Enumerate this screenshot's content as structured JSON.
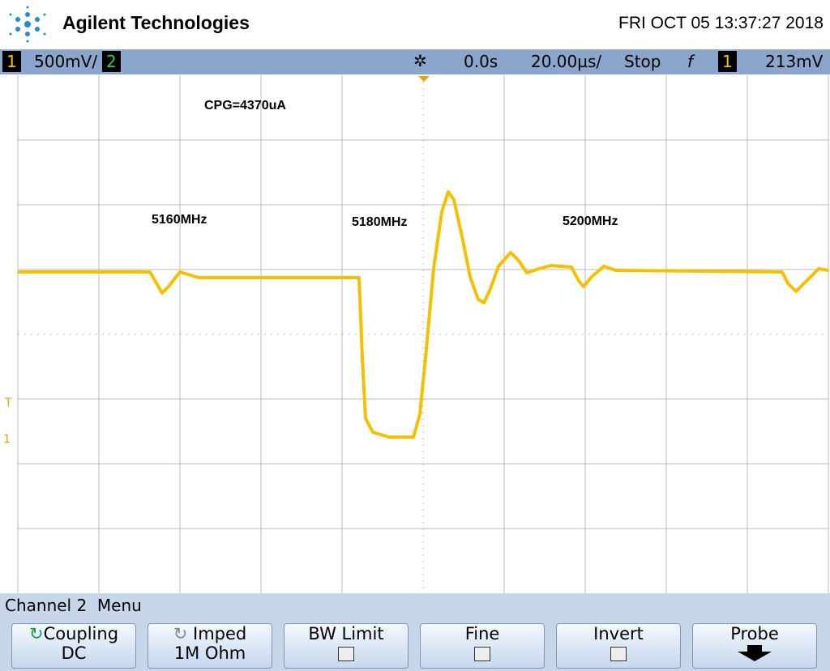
{
  "header": {
    "brand": "Agilent Technologies",
    "datetime": "FRI OCT 05 13:37:27 2018"
  },
  "status": {
    "channel1": "1",
    "scale1": "500mV/",
    "channel2": "2",
    "delay": "0.0s",
    "timebase": "20.00µs/",
    "run_state": "Stop",
    "trigger_slope": "f",
    "trigger_channel": "1",
    "trigger_level": "213mV"
  },
  "screen": {
    "annotations": [
      "CPG=4370uA",
      "5160MHz",
      "5180MHz",
      "5200MHz"
    ],
    "trigger_marker": "T",
    "ground_marker": "1"
  },
  "menu": {
    "title": "Channel 2  Menu",
    "buttons": [
      {
        "label": "Coupling",
        "value": "DC"
      },
      {
        "label": "Imped",
        "value": "1M Ohm"
      },
      {
        "label": "BW Limit"
      },
      {
        "label": "Fine"
      },
      {
        "label": "Invert"
      },
      {
        "label": "Probe"
      }
    ]
  }
}
